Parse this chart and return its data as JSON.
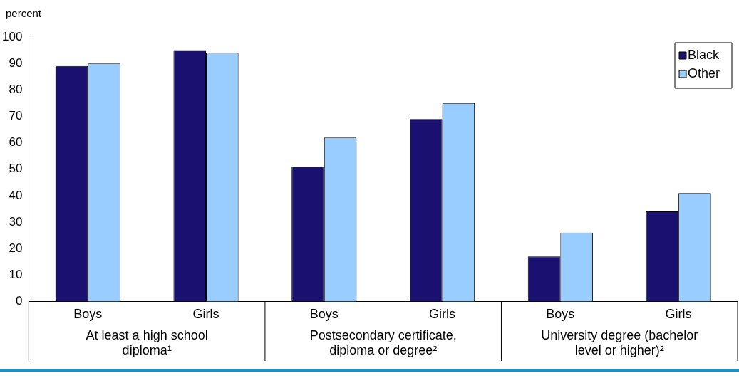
{
  "chart_data": {
    "type": "bar",
    "ylabel": "percent",
    "categories": [
      "Boys",
      "Girls",
      "Boys",
      "Girls",
      "Boys",
      "Girls"
    ],
    "annotations": [
      "At least a high school diploma¹",
      "Postsecondary certificate, diploma or degree²",
      "University degree (bachelor level or higher)²"
    ],
    "series": [
      {
        "name": "Black",
        "color": "#1a1070",
        "values": [
          89,
          95,
          51,
          69,
          17,
          34
        ]
      },
      {
        "name": "Other",
        "color": "#99ccff",
        "values": [
          90,
          94,
          62,
          75,
          26,
          41
        ]
      }
    ],
    "ylim": [
      0,
      100
    ],
    "yticks": [
      0,
      10,
      20,
      30,
      40,
      50,
      60,
      70,
      80,
      90,
      100
    ],
    "grid": false,
    "legend": "top right"
  }
}
